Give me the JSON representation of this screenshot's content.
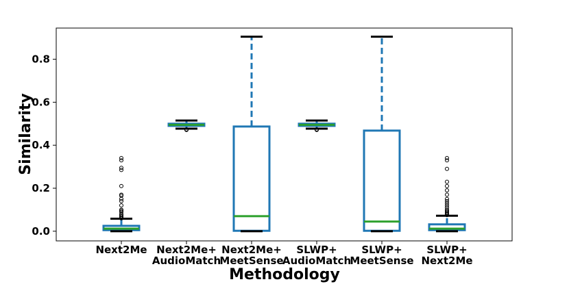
{
  "chart_data": {
    "type": "box",
    "xlabel": "Methodology",
    "ylabel": "Similarity",
    "ylim": [
      -0.045,
      0.945
    ],
    "yticks": [
      0.0,
      0.2,
      0.4,
      0.6,
      0.8
    ],
    "ytick_labels": [
      "0.0",
      "0.2",
      "0.4",
      "0.6",
      "0.8"
    ],
    "grid": false,
    "colors": {
      "box": "#1f77b4",
      "median": "#2ca02c",
      "cap": "#000000",
      "flier": "#000000"
    },
    "categories": [
      {
        "line1": "Next2Me",
        "line2": ""
      },
      {
        "line1": "Next2Me+",
        "line2": "AudioMatch"
      },
      {
        "line1": "Next2Me+",
        "line2": "MeetSense"
      },
      {
        "line1": "SLWP+",
        "line2": "AudioMatch"
      },
      {
        "line1": "SLWP+",
        "line2": "MeetSense"
      },
      {
        "line1": "SLWP+",
        "line2": "Next2Me"
      }
    ],
    "boxes": [
      {
        "whislo": 0.0,
        "q1": 0.005,
        "med": 0.012,
        "q3": 0.025,
        "whishi": 0.058,
        "fliers": [
          0.06,
          0.065,
          0.07,
          0.075,
          0.08,
          0.09,
          0.095,
          0.1,
          0.12,
          0.14,
          0.15,
          0.165,
          0.17,
          0.21,
          0.285,
          0.295,
          0.33,
          0.34
        ]
      },
      {
        "whislo": 0.477,
        "q1": 0.49,
        "med": 0.495,
        "q3": 0.5,
        "whishi": 0.515,
        "fliers": [
          0.474,
          0.471
        ]
      },
      {
        "whislo": 0.0,
        "q1": 0.002,
        "med": 0.07,
        "q3": 0.487,
        "whishi": 0.905,
        "fliers": []
      },
      {
        "whislo": 0.477,
        "q1": 0.49,
        "med": 0.495,
        "q3": 0.5,
        "whishi": 0.515,
        "fliers": [
          0.474,
          0.471
        ]
      },
      {
        "whislo": 0.0,
        "q1": 0.002,
        "med": 0.045,
        "q3": 0.468,
        "whishi": 0.905,
        "fliers": []
      },
      {
        "whislo": 0.0,
        "q1": 0.005,
        "med": 0.012,
        "q3": 0.032,
        "whishi": 0.072,
        "fliers": [
          0.075,
          0.08,
          0.085,
          0.09,
          0.095,
          0.1,
          0.11,
          0.12,
          0.13,
          0.14,
          0.15,
          0.17,
          0.19,
          0.21,
          0.23,
          0.29,
          0.33,
          0.34
        ]
      }
    ]
  }
}
